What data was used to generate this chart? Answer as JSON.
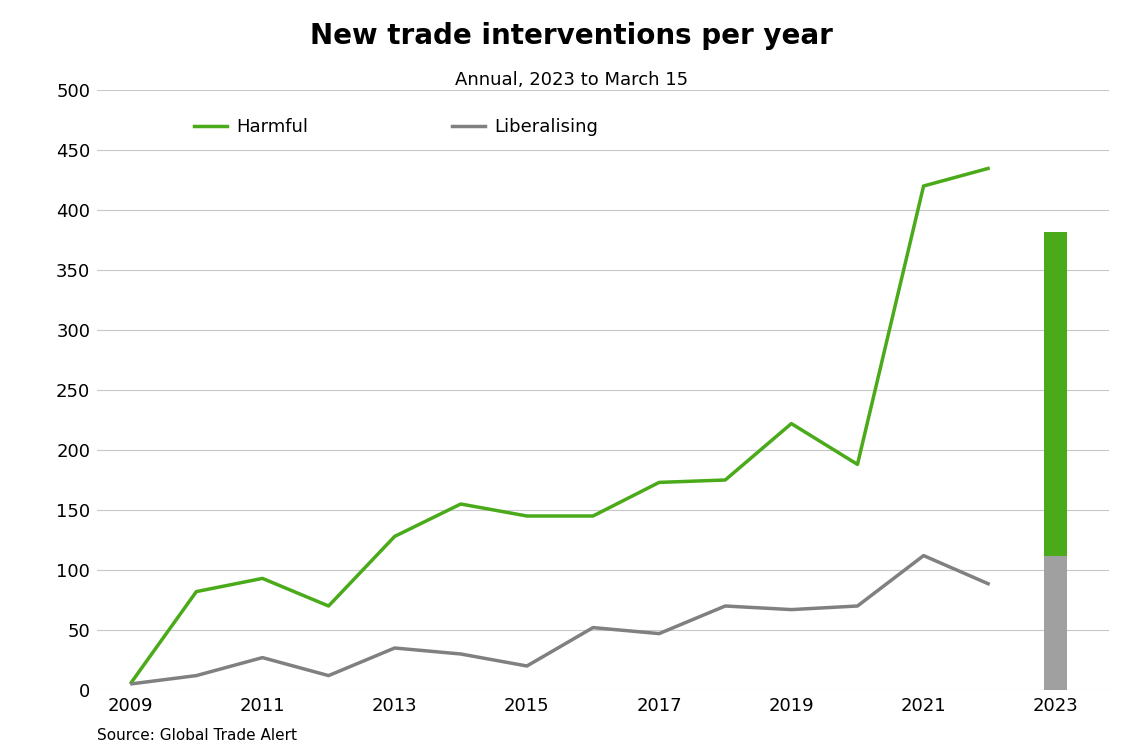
{
  "title": "New trade interventions per year",
  "subtitle": "Annual, 2023 to March 15",
  "source": "Source: Global Trade Alert",
  "harmful_years": [
    2009,
    2010,
    2011,
    2012,
    2013,
    2014,
    2015,
    2016,
    2017,
    2018,
    2019,
    2020,
    2021,
    2022
  ],
  "harmful_values": [
    5,
    82,
    93,
    70,
    128,
    155,
    145,
    145,
    173,
    175,
    222,
    188,
    420,
    435
  ],
  "liberalising_years": [
    2009,
    2010,
    2011,
    2012,
    2013,
    2014,
    2015,
    2016,
    2017,
    2018,
    2019,
    2020,
    2021,
    2022
  ],
  "liberalising_values": [
    5,
    12,
    27,
    12,
    35,
    30,
    20,
    52,
    47,
    70,
    67,
    70,
    112,
    88
  ],
  "harmful_2023": 382,
  "liberalising_2023": 112,
  "harmful_color": "#4aaa1a",
  "liberalising_color": "#808080",
  "harmful_rect_color": "#4aaa1a",
  "liberalising_rect_color": "#a0a0a0",
  "ylim_min": 0,
  "ylim_max": 500,
  "yticks": [
    0,
    50,
    100,
    150,
    200,
    250,
    300,
    350,
    400,
    450,
    500
  ],
  "xlim_min": 2008.5,
  "xlim_max": 2023.8,
  "xticks": [
    2009,
    2011,
    2013,
    2015,
    2017,
    2019,
    2021,
    2023
  ],
  "line_width": 2.5,
  "background_color": "#ffffff",
  "grid_color": "#c8c8c8",
  "title_fontsize": 20,
  "subtitle_fontsize": 13,
  "tick_fontsize": 13,
  "legend_fontsize": 13,
  "source_fontsize": 11
}
